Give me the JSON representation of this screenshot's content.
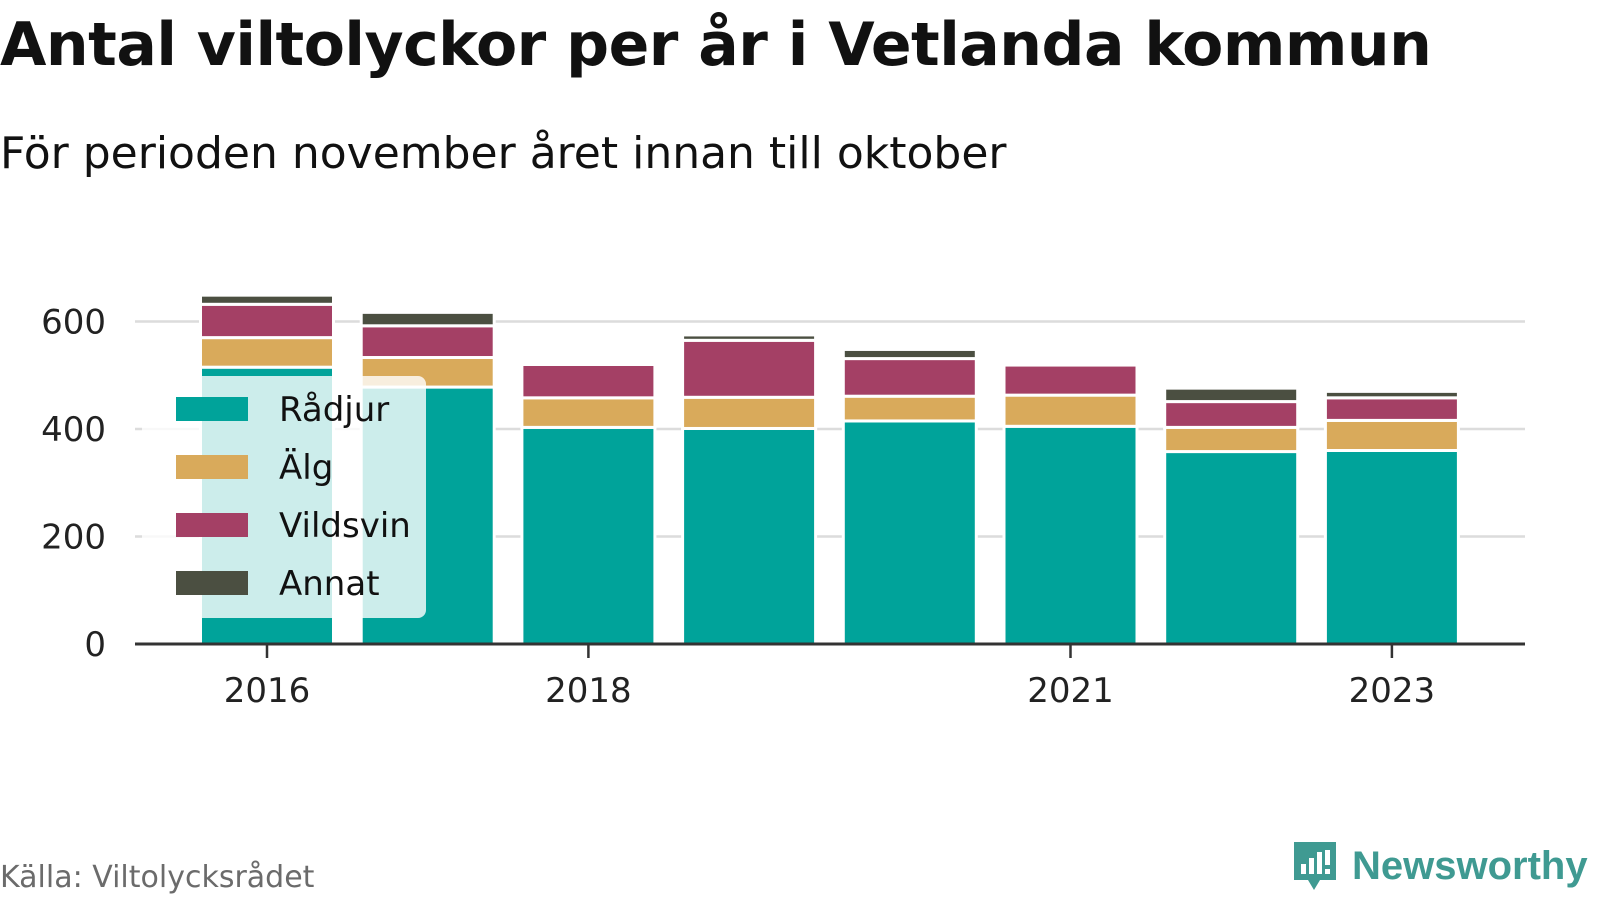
{
  "title": "Antal viltolyckor per år i Vetlanda kommun",
  "subtitle": "För perioden november året innan till oktober",
  "source": "Källa: Viltolycksrådet",
  "brand": "Newsworthy",
  "colors": {
    "Rådjur": "#00a39a",
    "Älg": "#d9aa5b",
    "Vildsvin": "#a44065",
    "Annat": "#4b4f41"
  },
  "chart_data": {
    "type": "bar",
    "stacked": true,
    "categories": [
      "2016",
      "2017",
      "2018",
      "2019",
      "2020",
      "2021",
      "2022",
      "2023"
    ],
    "x_tick_labels": [
      "2016",
      "2018",
      "2021",
      "2023"
    ],
    "series": [
      {
        "name": "Rådjur",
        "values": [
          515,
          478,
          403,
          401,
          415,
          405,
          358,
          360
        ]
      },
      {
        "name": "Älg",
        "values": [
          55,
          55,
          55,
          58,
          46,
          58,
          45,
          56
        ]
      },
      {
        "name": "Vildsvin",
        "values": [
          62,
          59,
          62,
          106,
          70,
          56,
          48,
          42
        ]
      },
      {
        "name": "Annat",
        "values": [
          17,
          25,
          0,
          10,
          17,
          5,
          25,
          12
        ]
      }
    ],
    "y_ticks": [
      0,
      200,
      400,
      600
    ],
    "ylim": [
      0,
      660
    ],
    "grid": true,
    "legend_position": "left"
  }
}
